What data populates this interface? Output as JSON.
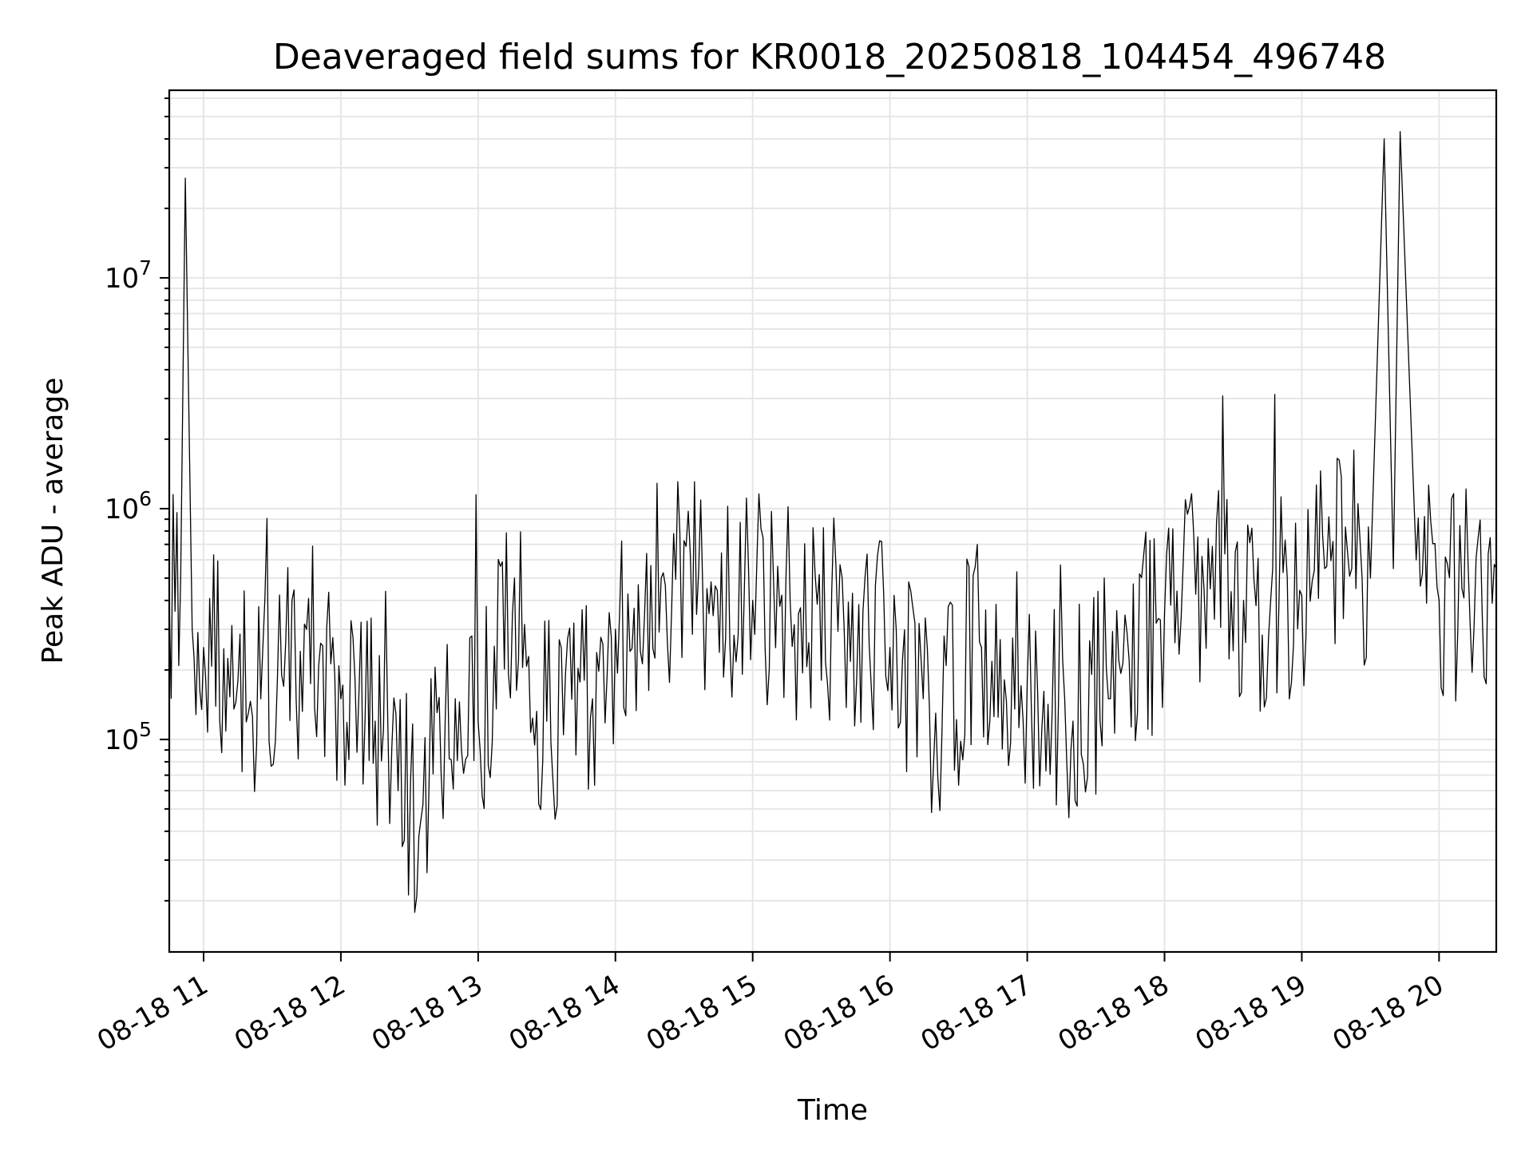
{
  "chart_data": {
    "type": "line",
    "title": "Deaveraged field sums for KR0018_20250818_104454_496748",
    "xlabel": "Time",
    "ylabel": "Peak ADU - average",
    "x_type": "datetime",
    "xlim": [
      "2025-08-18 10:45",
      "2025-08-18 20:25"
    ],
    "ylim": [
      12000,
      65000000
    ],
    "y_scale": "log",
    "grid": true,
    "x_ticks": [
      "2025-08-18 11:00",
      "2025-08-18 12:00",
      "2025-08-18 13:00",
      "2025-08-18 14:00",
      "2025-08-18 15:00",
      "2025-08-18 16:00",
      "2025-08-18 17:00",
      "2025-08-18 18:00",
      "2025-08-18 19:00",
      "2025-08-18 20:00"
    ],
    "x_tick_labels": [
      "08-18 11",
      "08-18 12",
      "08-18 13",
      "08-18 14",
      "08-18 15",
      "08-18 16",
      "08-18 17",
      "08-18 18",
      "08-18 19",
      "08-18 20"
    ],
    "y_ticks": [
      100000,
      1000000,
      10000000
    ],
    "y_tick_labels": [
      {
        "base": "10",
        "exp": "5"
      },
      {
        "base": "10",
        "exp": "6"
      },
      {
        "base": "10",
        "exp": "7"
      }
    ],
    "series": [
      {
        "color": "#000000",
        "x": [
          "2025-08-18 10:45",
          "2025-08-18 10:50",
          "2025-08-18 10:52",
          "2025-08-18 10:55",
          "2025-08-18 11:00",
          "2025-08-18 11:15",
          "2025-08-18 11:25",
          "2025-08-18 11:35",
          "2025-08-18 11:45",
          "2025-08-18 12:00",
          "2025-08-18 12:15",
          "2025-08-18 12:25",
          "2025-08-18 12:35",
          "2025-08-18 12:50",
          "2025-08-18 13:00",
          "2025-08-18 13:15",
          "2025-08-18 13:30",
          "2025-08-18 13:50",
          "2025-08-18 14:00",
          "2025-08-18 14:20",
          "2025-08-18 14:40",
          "2025-08-18 15:00",
          "2025-08-18 15:20",
          "2025-08-18 15:40",
          "2025-08-18 16:00",
          "2025-08-18 16:20",
          "2025-08-18 16:40",
          "2025-08-18 17:00",
          "2025-08-18 17:20",
          "2025-08-18 17:40",
          "2025-08-18 18:00",
          "2025-08-18 18:20",
          "2025-08-18 18:40",
          "2025-08-18 19:00",
          "2025-08-18 19:10",
          "2025-08-18 19:20",
          "2025-08-18 19:30",
          "2025-08-18 19:36",
          "2025-08-18 19:40",
          "2025-08-18 19:43",
          "2025-08-18 19:50",
          "2025-08-18 20:00",
          "2025-08-18 20:10",
          "2025-08-18 20:25"
        ],
        "y": [
          400000,
          500000,
          27000000,
          300000,
          250000,
          180000,
          150000,
          170000,
          300000,
          150000,
          120000,
          60000,
          45000,
          150000,
          120000,
          350000,
          120000,
          150000,
          300000,
          500000,
          450000,
          400000,
          350000,
          300000,
          250000,
          130000,
          250000,
          180000,
          120000,
          220000,
          350000,
          450000,
          380000,
          420000,
          550000,
          650000,
          500000,
          40000000,
          550000,
          43000000,
          600000,
          400000,
          450000,
          550000
        ]
      }
    ]
  }
}
